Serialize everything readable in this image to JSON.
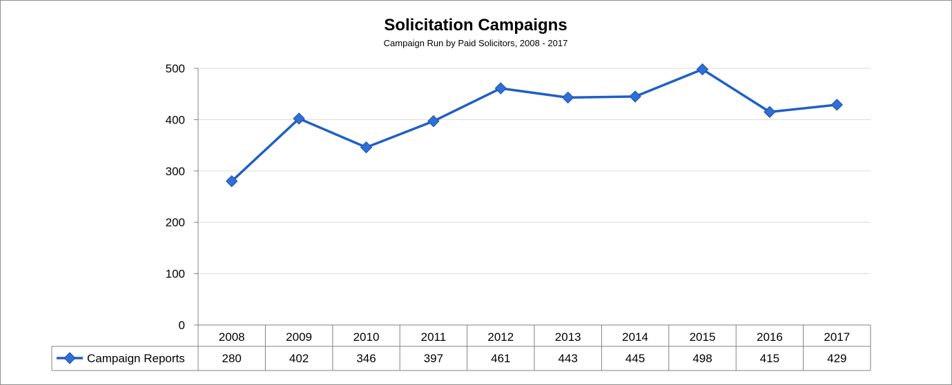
{
  "chart_data": {
    "type": "line",
    "title": "Solicitation Campaigns",
    "subtitle": "Campaign Run by Paid Solicitors, 2008 - 2017",
    "categories": [
      "2008",
      "2009",
      "2010",
      "2011",
      "2012",
      "2013",
      "2014",
      "2015",
      "2016",
      "2017"
    ],
    "series": [
      {
        "name": "Campaign Reports",
        "values": [
          280,
          402,
          346,
          397,
          461,
          443,
          445,
          498,
          415,
          429
        ],
        "color": "#1f5fc6"
      }
    ],
    "ylim": [
      0,
      500
    ],
    "yticks": [
      0,
      100,
      200,
      300,
      400,
      500
    ],
    "grid": true,
    "legend": "data-table",
    "data_table": true
  }
}
